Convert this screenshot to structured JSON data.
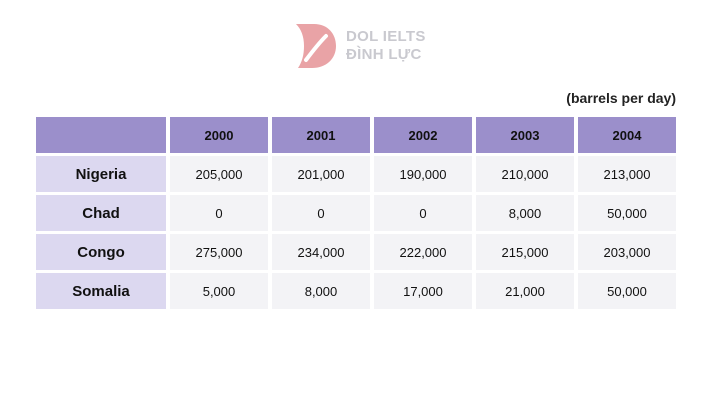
{
  "logo": {
    "line1": "DOL IELTS",
    "line2": "ĐÌNH LỰC",
    "accent": "#e9a3a6"
  },
  "unit": "(barrels per day)",
  "chart_data": {
    "type": "table",
    "columns": [
      "2000",
      "2001",
      "2002",
      "2003",
      "2004"
    ],
    "rows": [
      {
        "label": "Nigeria",
        "values": [
          "205,000",
          "201,000",
          "190,000",
          "210,000",
          "213,000"
        ]
      },
      {
        "label": "Chad",
        "values": [
          "0",
          "0",
          "0",
          "8,000",
          "50,000"
        ]
      },
      {
        "label": "Congo",
        "values": [
          "275,000",
          "234,000",
          "222,000",
          "215,000",
          "203,000"
        ]
      },
      {
        "label": "Somalia",
        "values": [
          "5,000",
          "8,000",
          "17,000",
          "21,000",
          "50,000"
        ]
      }
    ]
  }
}
